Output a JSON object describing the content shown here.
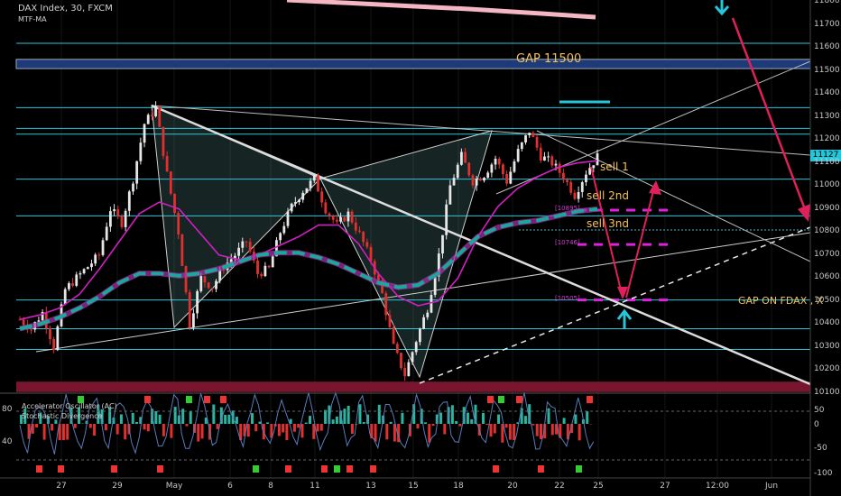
{
  "header": {
    "symbol": "DAX Index, 30, FXCM",
    "indicator": "MTF-MA"
  },
  "oscillator": {
    "label1": "Accelerator Oscillator (AC)",
    "label2": "Stochastic Divergence",
    "left_ticks": [
      "80",
      "40"
    ],
    "right_ticks": [
      "50",
      "0",
      "-50",
      "-100"
    ]
  },
  "annotations": {
    "gap_top": "GAP 11500",
    "gap_bottom": "GAP ON FDAX , X",
    "sell1": "sell 1",
    "sell2": "sell 2nd",
    "sell3": "sell 3nd",
    "level1": "[10895]",
    "level2": "[10746]",
    "level3": "[10505]"
  },
  "last_price": "11127",
  "colors": {
    "background": "#000000",
    "candle_up": "#e6e6e6",
    "candle_down": "#e03030",
    "ma_fast": "#d020c0",
    "ma_slow": "#1aa89a",
    "ma_slow_alt": "#b030b0",
    "support_lines": "#26c6da",
    "arrows": "#e0205a",
    "gap_band": "#1e3a78",
    "bottom_band": "#7a1530",
    "labels": "#f4c25a",
    "dash_levels": "#e020e0"
  },
  "chart_data": {
    "type": "candlestick",
    "title": "DAX Index, 30, FXCM",
    "y_ticks": [
      11800,
      11700,
      11600,
      11500,
      11400,
      11300,
      11200,
      11100,
      11000,
      10900,
      10800,
      10700,
      10600,
      10500,
      10400,
      10300,
      10200,
      10100
    ],
    "ylim": [
      10100,
      11800
    ],
    "x_ticks": [
      "27",
      "29",
      "May",
      "6",
      "8",
      "11",
      "13",
      "15",
      "18",
      "20",
      "22",
      "25",
      "27",
      "12:00",
      "Jun"
    ],
    "last_price": 11127,
    "horizontal_levels": [
      11620,
      11340,
      11250,
      11225,
      11030,
      10870,
      10505,
      10380,
      10290
    ],
    "gap_zone": [
      11510,
      11550
    ],
    "bottom_zone": [
      10105,
      10150
    ],
    "dashed_levels": [
      10895,
      10746,
      10505
    ],
    "price_path": [
      [
        0,
        10420
      ],
      [
        3,
        10380
      ],
      [
        6,
        10450
      ],
      [
        9,
        10300
      ],
      [
        12,
        10550
      ],
      [
        15,
        10600
      ],
      [
        18,
        10650
      ],
      [
        21,
        10700
      ],
      [
        24,
        10900
      ],
      [
        27,
        10840
      ],
      [
        30,
        11030
      ],
      [
        33,
        11270
      ],
      [
        36,
        11340
      ],
      [
        39,
        11050
      ],
      [
        42,
        10800
      ],
      [
        45,
        10400
      ],
      [
        48,
        10600
      ],
      [
        51,
        10560
      ],
      [
        54,
        10650
      ],
      [
        57,
        10700
      ],
      [
        60,
        10760
      ],
      [
        63,
        10620
      ],
      [
        66,
        10640
      ],
      [
        69,
        10800
      ],
      [
        72,
        10910
      ],
      [
        75,
        10980
      ],
      [
        78,
        11030
      ],
      [
        81,
        10900
      ],
      [
        84,
        10830
      ],
      [
        87,
        10880
      ],
      [
        90,
        10790
      ],
      [
        93,
        10680
      ],
      [
        96,
        10530
      ],
      [
        99,
        10300
      ],
      [
        102,
        10180
      ],
      [
        105,
        10330
      ],
      [
        108,
        10470
      ],
      [
        111,
        10700
      ],
      [
        114,
        11000
      ],
      [
        117,
        11130
      ],
      [
        120,
        11020
      ],
      [
        123,
        11050
      ],
      [
        126,
        11120
      ],
      [
        129,
        11020
      ],
      [
        132,
        11150
      ],
      [
        135,
        11240
      ],
      [
        138,
        11130
      ],
      [
        141,
        11100
      ],
      [
        144,
        11040
      ],
      [
        147,
        10960
      ],
      [
        150,
        11060
      ],
      [
        153,
        11127
      ]
    ],
    "moving_averages": [
      {
        "name": "MTF-MA",
        "values": [
          10420,
          10440,
          10470,
          10530,
          10640,
          10760,
          10880,
          10930,
          10900,
          10800,
          10700,
          10680,
          10700,
          10740,
          10780,
          10830,
          10830,
          10750,
          10620,
          10520,
          10480,
          10500,
          10600,
          10780,
          10910,
          10990,
          11040,
          11080,
          11100,
          11110
        ]
      },
      {
        "name": "MTF-MA slow",
        "values": [
          10380,
          10400,
          10430,
          10470,
          10520,
          10580,
          10620,
          10620,
          10610,
          10620,
          10640,
          10670,
          10700,
          10710,
          10710,
          10690,
          10660,
          10620,
          10580,
          10560,
          10570,
          10620,
          10700,
          10780,
          10820,
          10840,
          10850,
          10870,
          10890,
          10900
        ]
      }
    ]
  }
}
